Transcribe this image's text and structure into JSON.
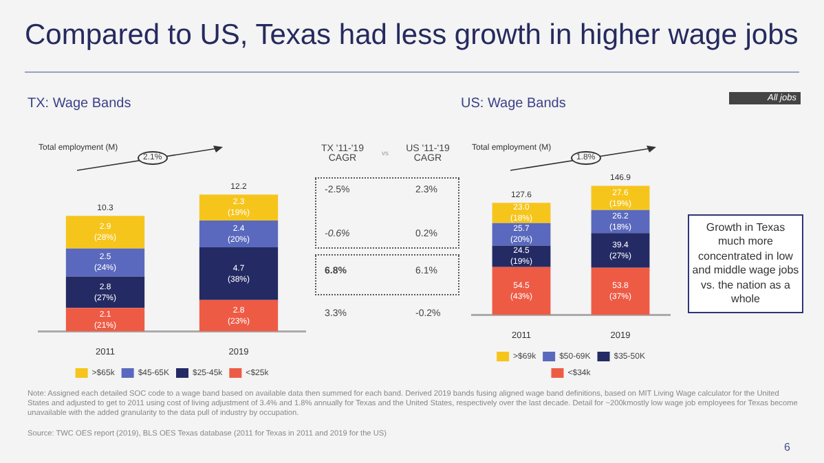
{
  "chart_data": [
    {
      "type": "bar",
      "title": "Compared to US, Texas had less growth in higher wage jobs",
      "subtitle": "TX: Wage Bands",
      "categories": [
        "2011",
        "2019"
      ],
      "stacked": true,
      "legend": "bottom",
      "series": [
        {
          "name": "<$25k",
          "color": "#ee5b45",
          "values": [
            2.1,
            2.8
          ],
          "value_labels": [
            "2.1\n(21%)",
            "2.8\n(23%)"
          ]
        },
        {
          "name": "$25-45k",
          "color": "#242a63",
          "values": [
            2.8,
            4.7
          ],
          "value_labels": [
            "2.8\n(27%)",
            "4.7\n(38%)"
          ]
        },
        {
          "name": "$45-65K",
          "color": "#5a69bd",
          "values": [
            2.5,
            2.4
          ],
          "value_labels": [
            "2.5\n(24%)",
            "2.4\n(20%)"
          ]
        },
        {
          "name": ">$65k",
          "color": "#f6c51c",
          "values": [
            2.9,
            2.3
          ],
          "value_labels": [
            "2.9\n(28%)",
            "2.3\n(19%)"
          ]
        }
      ],
      "totals": [
        "10.3",
        "12.2"
      ],
      "annotations": [
        "Total employment (M)",
        "2.1%"
      ]
    },
    {
      "type": "other",
      "annotations": [
        "TX '11-'19\nCAGR",
        "vs",
        "US '11-'19\nCAGR",
        "-2.5%",
        "2.3%",
        "-0.6%",
        "0.2%",
        "6.8%",
        "6.1%",
        "3.3%",
        "-0.2%"
      ]
    },
    {
      "type": "bar",
      "title": "US: Wage Bands",
      "categories": [
        "2011",
        "2019"
      ],
      "stacked": true,
      "legend": "bottom",
      "series": [
        {
          "name": "<$34k",
          "color": "#ee5b45",
          "values": [
            54.5,
            53.8
          ],
          "value_labels": [
            "54.5\n(43%)",
            "53.8\n(37%)"
          ]
        },
        {
          "name": "$35-50K",
          "color": "#242a63",
          "values": [
            24.5,
            39.4
          ],
          "value_labels": [
            "24.5\n(19%)",
            "39.4\n(27%)"
          ]
        },
        {
          "name": "$50-69K",
          "color": "#5a69bd",
          "values": [
            25.7,
            26.2
          ],
          "value_labels": [
            "25.7\n(20%)",
            "26.2\n(18%)"
          ]
        },
        {
          "name": ">$69k",
          "color": "#f6c51c",
          "values": [
            23.0,
            27.6
          ],
          "value_labels": [
            "23.0\n(18%)",
            "27.6\n(19%)"
          ]
        }
      ],
      "totals": [
        "127.6",
        "146.9"
      ],
      "annotations": [
        "Total employment (M)",
        "1.8%",
        "All jobs",
        "Growth in Texas much more concentrated in low and middle wage jobs vs. the nation as a whole",
        "Note: Assigned each detailed SOC code to a wage band based on available data then summed for each band. Derived 2019 bands fusing aligned wage band definitions, based on MIT Living Wage calculator for the United States and adjusted to get to 2011 using cost of living adjustment of 3.4% and 1.8% annually for Texas and the United States, respectively over the last decade. Detail for ~200kmostly low wage job employees for Texas become unavailable with the added granularity to the data pull of industry by occupation.",
        "Source: TWC OES report (2019), BLS OES Texas database (2011 for Texas in 2011 and 2019 for the US)",
        "6"
      ]
    }
  ]
}
